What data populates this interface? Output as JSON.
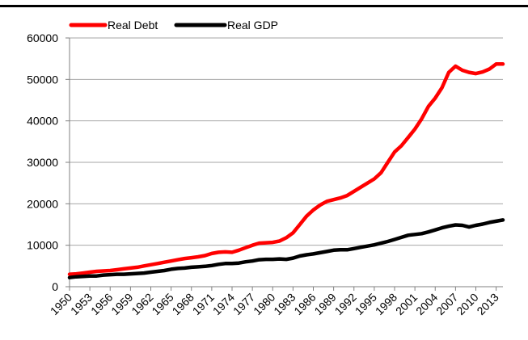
{
  "chart_data": {
    "type": "line",
    "title": "",
    "xlabel": "",
    "ylabel": "",
    "ylim": [
      0,
      60000
    ],
    "y_ticks": [
      "0",
      "10000",
      "20000",
      "30000",
      "40000",
      "50000",
      "60000"
    ],
    "x_ticks": [
      "1950",
      "1953",
      "1956",
      "1959",
      "1962",
      "1965",
      "1968",
      "1971",
      "1974",
      "1977",
      "1980",
      "1983",
      "1986",
      "1989",
      "1992",
      "1995",
      "1998",
      "2001",
      "2004",
      "2007",
      "2010",
      "2013"
    ],
    "legend_position": "top-left",
    "grid": "horizontal",
    "x": [
      1950,
      1951,
      1952,
      1953,
      1954,
      1955,
      1956,
      1957,
      1958,
      1959,
      1960,
      1961,
      1962,
      1963,
      1964,
      1965,
      1966,
      1967,
      1968,
      1969,
      1970,
      1971,
      1972,
      1973,
      1974,
      1975,
      1976,
      1977,
      1978,
      1979,
      1980,
      1981,
      1982,
      1983,
      1984,
      1985,
      1986,
      1987,
      1988,
      1989,
      1990,
      1991,
      1992,
      1993,
      1994,
      1995,
      1996,
      1997,
      1998,
      1999,
      2000,
      2001,
      2002,
      2003,
      2004,
      2005,
      2006,
      2007,
      2008,
      2009,
      2010,
      2011,
      2012,
      2013,
      2014
    ],
    "series": [
      {
        "name": "Real Debt",
        "color": "#ff0000",
        "values": [
          3000,
          3100,
          3300,
          3500,
          3700,
          3800,
          3900,
          4100,
          4300,
          4500,
          4700,
          5000,
          5300,
          5600,
          5900,
          6200,
          6500,
          6800,
          7000,
          7200,
          7500,
          8000,
          8300,
          8400,
          8300,
          8800,
          9400,
          10000,
          10500,
          10600,
          10700,
          11000,
          11800,
          13000,
          15000,
          17000,
          18500,
          19700,
          20600,
          21000,
          21400,
          22000,
          23000,
          24000,
          25000,
          26000,
          27500,
          30000,
          32500,
          34000,
          36000,
          38000,
          40500,
          43500,
          45500,
          48000,
          51700,
          53200,
          52200,
          51700,
          51400,
          51800,
          52500,
          53700,
          53700
        ],
        "opacity": 1
      },
      {
        "name": "Real GDP",
        "color": "#000000",
        "values": [
          2200,
          2400,
          2500,
          2600,
          2600,
          2800,
          2900,
          3000,
          3000,
          3100,
          3200,
          3300,
          3500,
          3700,
          3900,
          4200,
          4400,
          4500,
          4700,
          4800,
          4900,
          5100,
          5400,
          5600,
          5600,
          5700,
          6000,
          6200,
          6500,
          6600,
          6600,
          6700,
          6600,
          6900,
          7400,
          7700,
          7900,
          8200,
          8500,
          8800,
          8900,
          8900,
          9200,
          9500,
          9800,
          10100,
          10500,
          10900,
          11400,
          11900,
          12400,
          12600,
          12800,
          13200,
          13700,
          14200,
          14600,
          14900,
          14800,
          14400,
          14800,
          15100,
          15500,
          15800,
          16100
        ],
        "opacity": 1
      }
    ]
  }
}
